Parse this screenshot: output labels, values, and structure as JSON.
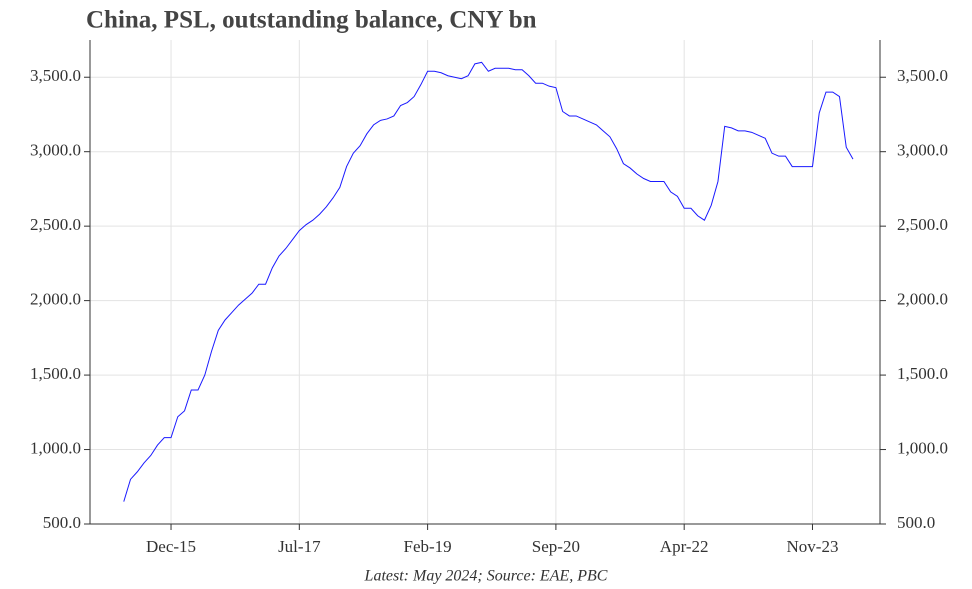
{
  "chart_data": {
    "type": "line",
    "title": "China, PSL, outstanding balance, CNY bn",
    "caption": "Latest: May 2024; Source: EAE, PBC",
    "color": "#1a1aff",
    "grid": true,
    "x": [
      "2015-05",
      "2015-06",
      "2015-07",
      "2015-08",
      "2015-09",
      "2015-10",
      "2015-11",
      "2015-12",
      "2016-01",
      "2016-02",
      "2016-03",
      "2016-04",
      "2016-05",
      "2016-06",
      "2016-07",
      "2016-08",
      "2016-09",
      "2016-10",
      "2016-11",
      "2016-12",
      "2017-01",
      "2017-02",
      "2017-03",
      "2017-04",
      "2017-05",
      "2017-06",
      "2017-07",
      "2017-08",
      "2017-09",
      "2017-10",
      "2017-11",
      "2017-12",
      "2018-01",
      "2018-02",
      "2018-03",
      "2018-04",
      "2018-05",
      "2018-06",
      "2018-07",
      "2018-08",
      "2018-09",
      "2018-10",
      "2018-11",
      "2018-12",
      "2019-01",
      "2019-02",
      "2019-03",
      "2019-04",
      "2019-05",
      "2019-06",
      "2019-07",
      "2019-08",
      "2019-09",
      "2019-10",
      "2019-11",
      "2019-12",
      "2020-01",
      "2020-02",
      "2020-03",
      "2020-04",
      "2020-05",
      "2020-06",
      "2020-07",
      "2020-08",
      "2020-09",
      "2020-10",
      "2020-11",
      "2020-12",
      "2021-01",
      "2021-02",
      "2021-03",
      "2021-04",
      "2021-05",
      "2021-06",
      "2021-07",
      "2021-08",
      "2021-09",
      "2021-10",
      "2021-11",
      "2021-12",
      "2022-01",
      "2022-02",
      "2022-03",
      "2022-04",
      "2022-05",
      "2022-06",
      "2022-07",
      "2022-08",
      "2022-09",
      "2022-10",
      "2022-11",
      "2022-12",
      "2023-01",
      "2023-02",
      "2023-03",
      "2023-04",
      "2023-05",
      "2023-06",
      "2023-07",
      "2023-08",
      "2023-09",
      "2023-10",
      "2023-11",
      "2023-12",
      "2024-01",
      "2024-02",
      "2024-03",
      "2024-04",
      "2024-05"
    ],
    "values": [
      650,
      800,
      850,
      910,
      960,
      1030,
      1080,
      1080,
      1220,
      1260,
      1400,
      1400,
      1500,
      1660,
      1800,
      1870,
      1920,
      1970,
      2010,
      2050,
      2110,
      2110,
      2220,
      2300,
      2350,
      2410,
      2470,
      2510,
      2540,
      2580,
      2630,
      2690,
      2760,
      2900,
      2990,
      3040,
      3120,
      3180,
      3210,
      3220,
      3240,
      3310,
      3330,
      3370,
      3450,
      3540,
      3540,
      3530,
      3510,
      3500,
      3490,
      3510,
      3590,
      3600,
      3540,
      3560,
      3560,
      3560,
      3550,
      3550,
      3510,
      3460,
      3460,
      3440,
      3430,
      3270,
      3240,
      3240,
      3220,
      3200,
      3180,
      3140,
      3100,
      3020,
      2920,
      2890,
      2850,
      2820,
      2800,
      2800,
      2800,
      2730,
      2700,
      2620,
      2620,
      2570,
      2540,
      2640,
      2800,
      3170,
      3160,
      3140,
      3140,
      3130,
      3110,
      3090,
      2990,
      2970,
      2970,
      2900,
      2900,
      2900,
      2900,
      3260,
      3400,
      3400,
      3370,
      3030,
      2950
    ],
    "xlim": [
      "2014-12",
      "2024-09"
    ],
    "xticks": [
      {
        "value": "2015-12",
        "label": "Dec-15"
      },
      {
        "value": "2017-07",
        "label": "Jul-17"
      },
      {
        "value": "2019-02",
        "label": "Feb-19"
      },
      {
        "value": "2020-09",
        "label": "Sep-20"
      },
      {
        "value": "2022-04",
        "label": "Apr-22"
      },
      {
        "value": "2023-11",
        "label": "Nov-23"
      }
    ],
    "ylim": [
      500,
      3750
    ],
    "yticks": [
      {
        "value": 500,
        "label": "500.0"
      },
      {
        "value": 1000,
        "label": "1,000.0"
      },
      {
        "value": 1500,
        "label": "1,500.0"
      },
      {
        "value": 2000,
        "label": "2,000.0"
      },
      {
        "value": 2500,
        "label": "2,500.0"
      },
      {
        "value": 3000,
        "label": "3,000.0"
      },
      {
        "value": 3500,
        "label": "3,500.0"
      }
    ]
  }
}
